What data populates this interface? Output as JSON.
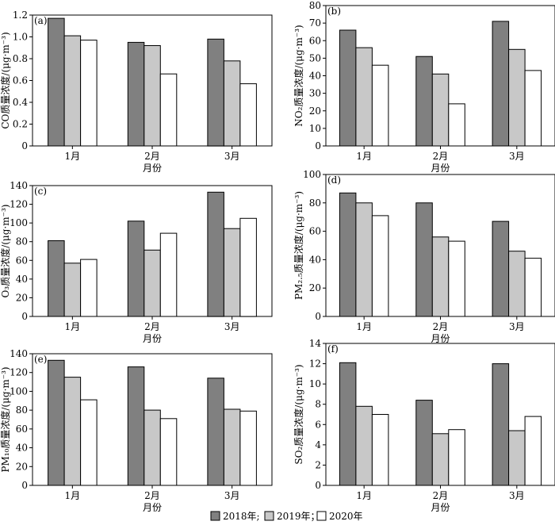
{
  "series_styles": [
    {
      "fill": "#808080"
    },
    {
      "fill": "#c8c8c8"
    },
    {
      "fill": "#ffffff"
    }
  ],
  "legend": {
    "entries": [
      "2018年;",
      "2019年；",
      "2020年"
    ]
  },
  "chart_data": [
    {
      "type": "bar",
      "panel_label": "(a)",
      "ylabel": "CO质量浓度/(μg·m⁻³)",
      "xlabel": "月份",
      "categories": [
        "1月",
        "2月",
        "3月"
      ],
      "ylim": [
        0,
        1.2
      ],
      "yticks": [
        "0",
        "0.2",
        "0.4",
        "0.6",
        "0.8",
        "1.0",
        "1.2"
      ],
      "series": [
        {
          "values": [
            1.17,
            0.95,
            0.98
          ]
        },
        {
          "values": [
            1.01,
            0.92,
            0.78
          ]
        },
        {
          "values": [
            0.97,
            0.66,
            0.57
          ]
        }
      ]
    },
    {
      "type": "bar",
      "panel_label": "(b)",
      "ylabel": "NO₂质量浓度/(μg·m⁻³)",
      "xlabel": "月份",
      "categories": [
        "1月",
        "2月",
        "3月"
      ],
      "ylim": [
        0,
        80
      ],
      "yticks": [
        "0",
        "10",
        "20",
        "30",
        "40",
        "50",
        "60",
        "70",
        "80"
      ],
      "series": [
        {
          "values": [
            66,
            51,
            71
          ]
        },
        {
          "values": [
            56,
            41,
            55
          ]
        },
        {
          "values": [
            46,
            24,
            43
          ]
        }
      ]
    },
    {
      "type": "bar",
      "panel_label": "(c)",
      "ylabel": "O₃质量浓度/(μg·m⁻³)",
      "xlabel": "月份",
      "categories": [
        "1月",
        "2月",
        "3月"
      ],
      "ylim": [
        0,
        140
      ],
      "yticks": [
        "0",
        "20",
        "40",
        "60",
        "80",
        "100",
        "120",
        "140"
      ],
      "series": [
        {
          "values": [
            81,
            102,
            133
          ]
        },
        {
          "values": [
            57,
            71,
            94
          ]
        },
        {
          "values": [
            61,
            89,
            105
          ]
        }
      ]
    },
    {
      "type": "bar",
      "panel_label": "(d)",
      "ylabel": "PM₂.₅质量浓度/(μg·m⁻³)",
      "xlabel": "月份",
      "categories": [
        "1月",
        "2月",
        "3月"
      ],
      "ylim": [
        0,
        100
      ],
      "yticks": [
        "0",
        "20",
        "40",
        "60",
        "80",
        "100"
      ],
      "series": [
        {
          "values": [
            87,
            80,
            67
          ]
        },
        {
          "values": [
            80,
            56,
            46
          ]
        },
        {
          "values": [
            71,
            53,
            41
          ]
        }
      ]
    },
    {
      "type": "bar",
      "panel_label": "(e)",
      "ylabel": "PM₁₀质量浓度/(μg·m⁻³)",
      "xlabel": "月份",
      "categories": [
        "1月",
        "2月",
        "3月"
      ],
      "ylim": [
        0,
        140
      ],
      "yticks": [
        "0",
        "20",
        "40",
        "60",
        "80",
        "100",
        "120",
        "140"
      ],
      "series": [
        {
          "values": [
            133,
            126,
            114
          ]
        },
        {
          "values": [
            115,
            80,
            81
          ]
        },
        {
          "values": [
            91,
            71,
            79
          ]
        }
      ]
    },
    {
      "type": "bar",
      "panel_label": "(f)",
      "ylabel": "SO₂质量浓度/(μg·m⁻³)",
      "xlabel": "月份",
      "categories": [
        "1月",
        "2月",
        "3月"
      ],
      "ylim": [
        0,
        14
      ],
      "yticks": [
        "0",
        "2",
        "4",
        "6",
        "8",
        "10",
        "12",
        "14"
      ],
      "series": [
        {
          "values": [
            12.1,
            8.4,
            12.0
          ]
        },
        {
          "values": [
            7.8,
            5.1,
            5.4
          ]
        },
        {
          "values": [
            7.0,
            5.5,
            6.8
          ]
        }
      ]
    }
  ]
}
